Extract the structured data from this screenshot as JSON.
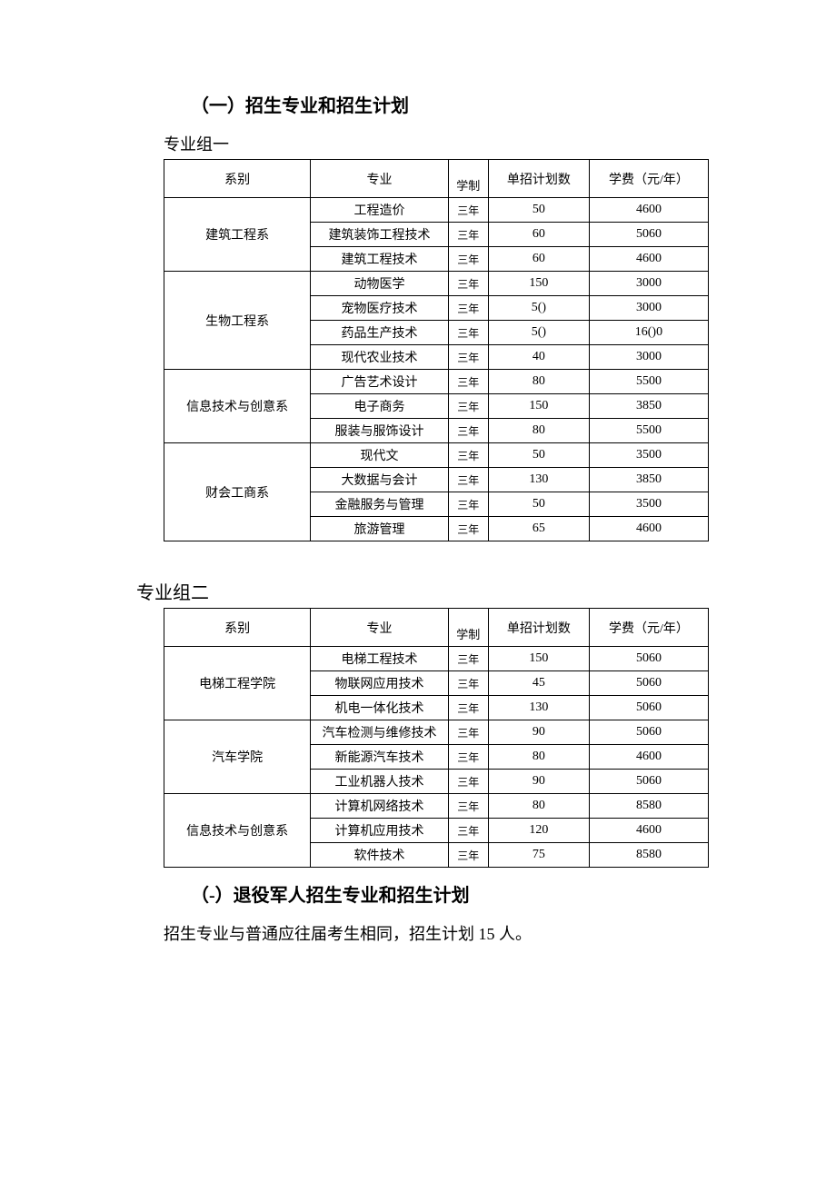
{
  "section1": {
    "title": "（一）招生专业和招生计划",
    "group1_label": "专业组一",
    "group2_label": "专业组二"
  },
  "headers": {
    "dept": "系别",
    "major": "专业",
    "duration": "学制",
    "count": "单招计划数",
    "fee": "学费（元/年）"
  },
  "group1": [
    {
      "dept": "建筑工程系",
      "rows": [
        {
          "major": "工程造价",
          "duration": "三年",
          "count": "50",
          "fee": "4600"
        },
        {
          "major": "建筑装饰工程技术",
          "duration": "三年",
          "count": "60",
          "fee": "5060"
        },
        {
          "major": "建筑工程技术",
          "duration": "三年",
          "count": "60",
          "fee": "4600"
        }
      ]
    },
    {
      "dept": "生物工程系",
      "rows": [
        {
          "major": "动物医学",
          "duration": "三年",
          "count": "150",
          "fee": "3000"
        },
        {
          "major": "宠物医疗技术",
          "duration": "三年",
          "count": "5()",
          "fee": "3000"
        },
        {
          "major": "药品生产技术",
          "duration": "三年",
          "count": "5()",
          "fee": "16()0"
        },
        {
          "major": "现代农业技术",
          "duration": "三年",
          "count": "40",
          "fee": "3000"
        }
      ]
    },
    {
      "dept": "信息技术与创意系",
      "rows": [
        {
          "major": "广告艺术设计",
          "duration": "三年",
          "count": "80",
          "fee": "5500"
        },
        {
          "major": "电子商务",
          "duration": "三年",
          "count": "150",
          "fee": "3850"
        },
        {
          "major": "服装与服饰设计",
          "duration": "三年",
          "count": "80",
          "fee": "5500"
        }
      ]
    },
    {
      "dept": "财会工商系",
      "rows": [
        {
          "major": "现代文",
          "duration": "三年",
          "count": "50",
          "fee": "3500"
        },
        {
          "major": "大数据与会计",
          "duration": "三年",
          "count": "130",
          "fee": "3850"
        },
        {
          "major": "金融服务与管理",
          "duration": "三年",
          "count": "50",
          "fee": "3500"
        },
        {
          "major": "旅游管理",
          "duration": "三年",
          "count": "65",
          "fee": "4600"
        }
      ]
    }
  ],
  "group2": [
    {
      "dept": "电梯工程学院",
      "rows": [
        {
          "major": "电梯工程技术",
          "duration": "三年",
          "count": "150",
          "fee": "5060"
        },
        {
          "major": "物联网应用技术",
          "duration": "三年",
          "count": "45",
          "fee": "5060"
        },
        {
          "major": "机电一体化技术",
          "duration": "三年",
          "count": "130",
          "fee": "5060"
        }
      ]
    },
    {
      "dept": "汽车学院",
      "rows": [
        {
          "major": "汽车检测与维修技术",
          "duration": "三年",
          "count": "90",
          "fee": "5060"
        },
        {
          "major": "新能源汽车技术",
          "duration": "三年",
          "count": "80",
          "fee": "4600"
        },
        {
          "major": "工业机器人技术",
          "duration": "三年",
          "count": "90",
          "fee": "5060"
        }
      ]
    },
    {
      "dept": "信息技术与创意系",
      "rows": [
        {
          "major": "计算机网络技术",
          "duration": "三年",
          "count": "80",
          "fee": "8580"
        },
        {
          "major": "计算机应用技术",
          "duration": "三年",
          "count": "120",
          "fee": "4600"
        },
        {
          "major": "软件技术",
          "duration": "三年",
          "count": "75",
          "fee": "8580"
        }
      ]
    }
  ],
  "section2": {
    "title": "（-）退役军人招生专业和招生计划",
    "text": "招生专业与普通应往届考生相同，招生计划 15 人。"
  }
}
